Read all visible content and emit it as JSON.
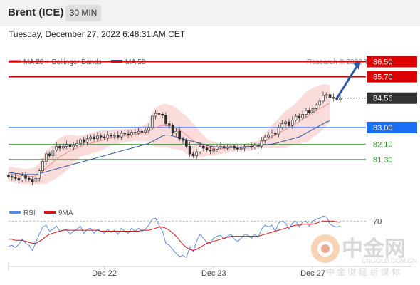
{
  "header": {
    "instrument": "Brent (ICE)",
    "timeframe": "30 MIN"
  },
  "timestamp": "Tuesday, December 27, 2022 6:48:31 AM CET",
  "legend": [
    {
      "label": "MA 20 + Bollinger Bands",
      "color": "#f08a8a"
    },
    {
      "label": "MA 50",
      "color": "#2e5597"
    }
  ],
  "copyright": "Research © 2022 Trading Central",
  "rsi_legend": [
    {
      "label": "RSI",
      "color": "#5b8de0"
    },
    {
      "label": "9MA",
      "color": "#dd1111"
    }
  ],
  "watermark": {
    "name": "中金网",
    "url": "CNGOLD.COM.CN",
    "tagline": "中 金 财 经 新 媒 体"
  },
  "chart_data": {
    "type": "candlestick",
    "y_range": [
      79.4,
      87.2
    ],
    "x_ticks": [
      {
        "label": "Dec 22",
        "index": 28
      },
      {
        "label": "Dec 23",
        "index": 60
      },
      {
        "label": "Dec 27",
        "index": 89
      }
    ],
    "levels": [
      {
        "value": 86.5,
        "label": "86.50",
        "color": "#dd0000",
        "style": "resistance"
      },
      {
        "value": 85.7,
        "label": "85.70",
        "color": "#dd0000",
        "style": "resistance"
      },
      {
        "value": 84.56,
        "label": "84.56",
        "color": "#333333",
        "style": "last"
      },
      {
        "value": 83.0,
        "label": "83.00",
        "color": "#1a6ef5",
        "style": "pivot"
      },
      {
        "value": 82.1,
        "label": "82.10",
        "color": "#2a8a2a",
        "style": "support"
      },
      {
        "value": 81.3,
        "label": "81.30",
        "color": "#2a8a2a",
        "style": "support"
      }
    ],
    "arrow": {
      "from": [
        96,
        84.55
      ],
      "to": [
        103,
        86.5
      ]
    },
    "closes": [
      80.4,
      80.35,
      80.3,
      80.2,
      80.45,
      80.3,
      80.25,
      80.1,
      80.3,
      80.7,
      81.2,
      81.6,
      81.5,
      81.8,
      82.0,
      81.9,
      82.0,
      82.1,
      81.95,
      82.05,
      82.15,
      82.35,
      82.2,
      82.4,
      82.5,
      82.4,
      82.55,
      82.5,
      82.45,
      82.6,
      82.55,
      82.6,
      82.5,
      82.7,
      82.65,
      82.6,
      82.75,
      82.7,
      82.8,
      82.75,
      82.85,
      83.0,
      83.6,
      83.75,
      83.7,
      83.65,
      83.2,
      83.1,
      82.7,
      82.8,
      82.4,
      82.3,
      82.0,
      81.6,
      81.5,
      81.7,
      82.0,
      81.9,
      81.8,
      81.75,
      81.85,
      81.95,
      82.0,
      81.9,
      81.95,
      82.0,
      81.9,
      81.85,
      81.9,
      82.0,
      82.0,
      81.95,
      82.05,
      82.0,
      82.3,
      82.5,
      82.6,
      82.7,
      82.65,
      83.0,
      83.2,
      83.3,
      83.1,
      83.4,
      83.6,
      83.5,
      83.7,
      83.9,
      83.8,
      84.0,
      84.2,
      84.4,
      84.7,
      84.75,
      84.6,
      84.55,
      84.5,
      84.56
    ],
    "ma20": [
      80.5,
      80.5,
      80.45,
      80.45,
      80.4,
      80.4,
      80.4,
      80.4,
      80.45,
      80.55,
      80.7,
      80.85,
      81.0,
      81.15,
      81.3,
      81.45,
      81.55,
      81.65,
      81.75,
      81.85,
      81.9,
      82.0,
      82.05,
      82.1,
      82.15,
      82.2,
      82.25,
      82.3,
      82.35,
      82.4,
      82.45,
      82.5,
      82.5,
      82.55,
      82.55,
      82.6,
      82.6,
      82.65,
      82.65,
      82.7,
      82.7,
      82.8,
      82.9,
      83.0,
      83.05,
      83.1,
      83.1,
      83.05,
      83.0,
      82.95,
      82.85,
      82.75,
      82.6,
      82.45,
      82.3,
      82.2,
      82.1,
      82.0,
      81.95,
      81.9,
      81.88,
      81.87,
      81.87,
      81.88,
      81.9,
      81.92,
      81.93,
      81.94,
      81.95,
      81.96,
      81.98,
      82.0,
      82.05,
      82.1,
      82.2,
      82.3,
      82.4,
      82.5,
      82.6,
      82.7,
      82.8,
      82.9,
      83.0,
      83.1,
      83.2,
      83.3,
      83.45,
      83.55,
      83.65,
      83.8,
      83.9,
      84.0,
      84.1,
      84.2,
      84.3
    ],
    "bb_upper": [
      80.9,
      80.9,
      80.85,
      80.85,
      80.8,
      80.8,
      80.8,
      80.85,
      80.9,
      81.1,
      81.4,
      81.7,
      81.9,
      82.1,
      82.3,
      82.45,
      82.55,
      82.6,
      82.6,
      82.6,
      82.55,
      82.55,
      82.6,
      82.65,
      82.7,
      82.75,
      82.8,
      82.85,
      82.85,
      82.85,
      82.85,
      82.9,
      82.9,
      82.9,
      82.9,
      82.95,
      82.95,
      83.0,
      83.05,
      83.1,
      83.15,
      83.35,
      83.8,
      84.05,
      84.15,
      84.25,
      84.25,
      84.2,
      84.15,
      84.05,
      83.9,
      83.75,
      83.6,
      83.4,
      83.2,
      83.0,
      82.8,
      82.6,
      82.4,
      82.3,
      82.25,
      82.2,
      82.15,
      82.15,
      82.15,
      82.15,
      82.15,
      82.15,
      82.15,
      82.15,
      82.2,
      82.2,
      82.25,
      82.3,
      82.5,
      82.7,
      82.9,
      83.1,
      83.3,
      83.5,
      83.7,
      83.9,
      84.0,
      84.15,
      84.3,
      84.5,
      84.7,
      84.9,
      85.0,
      85.1,
      85.2,
      85.25,
      85.3,
      85.3,
      85.25
    ],
    "bb_lower": [
      80.1,
      80.1,
      80.05,
      80.05,
      80.0,
      80.0,
      80.0,
      79.95,
      80.0,
      80.0,
      80.0,
      80.0,
      80.1,
      80.2,
      80.3,
      80.45,
      80.55,
      80.7,
      80.9,
      81.1,
      81.25,
      81.45,
      81.5,
      81.55,
      81.6,
      81.65,
      81.7,
      81.75,
      81.85,
      81.95,
      82.05,
      82.1,
      82.1,
      82.2,
      82.2,
      82.25,
      82.25,
      82.3,
      82.25,
      82.3,
      82.25,
      82.25,
      82.0,
      81.95,
      81.95,
      81.95,
      81.95,
      81.9,
      81.85,
      81.85,
      81.8,
      81.75,
      81.6,
      81.5,
      81.4,
      81.4,
      81.4,
      81.4,
      81.5,
      81.5,
      81.5,
      81.55,
      81.6,
      81.6,
      81.65,
      81.7,
      81.71,
      81.73,
      81.75,
      81.77,
      81.76,
      81.8,
      81.85,
      81.9,
      81.9,
      81.9,
      81.9,
      81.9,
      81.9,
      81.9,
      81.9,
      81.9,
      82.0,
      82.05,
      82.1,
      82.1,
      82.2,
      82.2,
      82.3,
      82.5,
      82.6,
      82.75,
      82.9,
      83.1,
      83.35
    ],
    "ma50": [
      80.6,
      80.6,
      80.55,
      80.55,
      80.5,
      80.5,
      80.5,
      80.5,
      80.5,
      80.55,
      80.6,
      80.65,
      80.7,
      80.75,
      80.8,
      80.85,
      80.9,
      80.95,
      81.0,
      81.05,
      81.1,
      81.15,
      81.2,
      81.25,
      81.3,
      81.35,
      81.4,
      81.45,
      81.5,
      81.55,
      81.6,
      81.65,
      81.7,
      81.75,
      81.8,
      81.85,
      81.9,
      81.95,
      82.0,
      82.05,
      82.1,
      82.15,
      82.25,
      82.35,
      82.45,
      82.55,
      82.6,
      82.6,
      82.55,
      82.5,
      82.45,
      82.4,
      82.35,
      82.3,
      82.25,
      82.2,
      82.15,
      82.1,
      82.05,
      82.0,
      81.98,
      81.96,
      81.95,
      81.95,
      81.95,
      81.95,
      81.95,
      81.95,
      81.95,
      81.96,
      81.97,
      81.98,
      82.0,
      82.02,
      82.05,
      82.08,
      82.1,
      82.12,
      82.15,
      82.2,
      82.25,
      82.3,
      82.35,
      82.4,
      82.45,
      82.5,
      82.6,
      82.7,
      82.8,
      82.9,
      83.0,
      83.1,
      83.2,
      83.3,
      83.35
    ],
    "rsi": {
      "y_range": [
        30,
        78
      ],
      "ticks": [
        {
          "value": 70,
          "label": "70"
        }
      ],
      "rsi": [
        45,
        46,
        44,
        47,
        52,
        48,
        46,
        41,
        49,
        57,
        64,
        66,
        60,
        62,
        65,
        60,
        61,
        62,
        57,
        60,
        62,
        65,
        58,
        62,
        63,
        58,
        62,
        60,
        58,
        62,
        59,
        61,
        57,
        63,
        60,
        58,
        63,
        60,
        63,
        60,
        62,
        66,
        72,
        73,
        66,
        60,
        48,
        46,
        42,
        38,
        35,
        36,
        34,
        44,
        40,
        50,
        57,
        53,
        49,
        48,
        53,
        55,
        56,
        52,
        55,
        57,
        52,
        50,
        53,
        57,
        56,
        53,
        57,
        54,
        62,
        66,
        64,
        66,
        60,
        68,
        70,
        68,
        62,
        68,
        70,
        64,
        69,
        70,
        65,
        70,
        72,
        73,
        75,
        74,
        67,
        65,
        64,
        65
      ],
      "ma9": [
        52,
        52,
        51,
        51,
        51,
        50,
        49,
        48,
        48,
        50,
        52,
        55,
        57,
        58,
        59,
        60,
        61,
        61,
        61,
        61,
        61,
        61,
        61,
        61,
        61,
        61,
        61,
        60,
        60,
        60,
        60,
        60,
        60,
        60,
        60,
        60,
        60,
        60,
        60,
        61,
        61,
        61,
        62,
        63,
        64,
        64,
        63,
        61,
        58,
        55,
        51,
        47,
        44,
        42,
        41,
        42,
        44,
        46,
        48,
        49,
        50,
        51,
        52,
        53,
        54,
        55,
        55,
        55,
        55,
        55,
        55,
        55,
        55,
        55,
        56,
        57,
        58,
        59,
        60,
        61,
        62,
        63,
        64,
        65,
        66,
        66,
        67,
        67,
        67,
        67,
        68,
        69,
        70,
        70,
        70,
        70,
        69,
        69
      ]
    }
  }
}
